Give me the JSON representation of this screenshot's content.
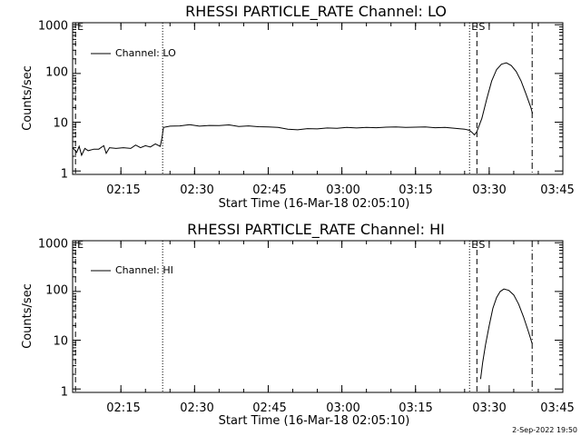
{
  "footer_date": "2-Sep-2022 19:50",
  "chart_data": [
    {
      "type": "line",
      "title": "RHESSI PARTICLE_RATE Channel: LO",
      "xlabel": "Start Time (16-Mar-18 02:05:10)",
      "ylabel": "Counts/sec",
      "y_scale": "log",
      "ylim": [
        0.85,
        1100
      ],
      "xlim": [
        "02:05:10",
        "03:45:00"
      ],
      "x_tick_labels": [
        "02:15",
        "02:30",
        "02:45",
        "03:00",
        "03:15",
        "03:30",
        "03:45"
      ],
      "y_tick_labels": [
        "1",
        "10",
        "100",
        "1000"
      ],
      "legend": {
        "position": "top-left",
        "label": "Channel: LO"
      },
      "grid": false,
      "markers": [
        {
          "time": "02:05:45",
          "style": "dashed",
          "label": "E"
        },
        {
          "time": "02:23:30",
          "style": "dotted",
          "label": ""
        },
        {
          "time": "03:26:00",
          "style": "dotted",
          "label": "E"
        },
        {
          "time": "03:27:30",
          "style": "dashed",
          "label": "S"
        },
        {
          "time": "03:38:45",
          "style": "dashdot",
          "label": ""
        }
      ],
      "series": [
        {
          "segments": [
            [
              [
                "02:05:10",
                3.0
              ],
              [
                "02:06:00",
                2.4
              ],
              [
                "02:06:30",
                3.2
              ],
              [
                "02:07:00",
                2.1
              ],
              [
                "02:07:40",
                2.9
              ],
              [
                "02:08:20",
                2.6
              ],
              [
                "02:09:30",
                2.8
              ],
              [
                "02:10:30",
                2.8
              ],
              [
                "02:11:30",
                3.3
              ],
              [
                "02:12:00",
                2.3
              ],
              [
                "02:12:40",
                3.0
              ],
              [
                "02:14:00",
                2.9
              ],
              [
                "02:15:30",
                3.0
              ],
              [
                "02:17:00",
                2.9
              ],
              [
                "02:18:00",
                3.4
              ],
              [
                "02:19:00",
                3.0
              ],
              [
                "02:20:00",
                3.3
              ],
              [
                "02:21:00",
                3.1
              ],
              [
                "02:22:00",
                3.6
              ],
              [
                "02:23:00",
                3.2
              ],
              [
                "02:23:20",
                4.6
              ],
              [
                "02:23:40",
                7.8
              ],
              [
                "02:25:00",
                8.3
              ],
              [
                "02:27:00",
                8.4
              ],
              [
                "02:29:00",
                8.9
              ],
              [
                "02:31:00",
                8.3
              ],
              [
                "02:33:00",
                8.6
              ],
              [
                "02:35:00",
                8.5
              ],
              [
                "02:37:00",
                8.8
              ],
              [
                "02:39:00",
                8.2
              ],
              [
                "02:41:00",
                8.4
              ],
              [
                "02:43:00",
                8.1
              ],
              [
                "02:45:00",
                8.0
              ],
              [
                "02:47:00",
                7.8
              ],
              [
                "02:49:00",
                7.2
              ],
              [
                "02:51:00",
                7.0
              ],
              [
                "02:53:00",
                7.4
              ],
              [
                "02:55:00",
                7.3
              ],
              [
                "02:57:00",
                7.6
              ],
              [
                "02:59:00",
                7.5
              ],
              [
                "03:01:00",
                7.8
              ],
              [
                "03:03:00",
                7.6
              ],
              [
                "03:05:00",
                7.8
              ],
              [
                "03:07:00",
                7.7
              ],
              [
                "03:09:00",
                7.9
              ],
              [
                "03:11:00",
                8.0
              ],
              [
                "03:13:00",
                7.8
              ],
              [
                "03:15:00",
                7.9
              ],
              [
                "03:17:00",
                8.0
              ],
              [
                "03:19:00",
                7.7
              ],
              [
                "03:21:00",
                7.8
              ],
              [
                "03:23:00",
                7.5
              ],
              [
                "03:25:00",
                7.2
              ],
              [
                "03:26:00",
                6.8
              ],
              [
                "03:26:30",
                6.2
              ],
              [
                "03:27:00",
                5.5
              ],
              [
                "03:27:30",
                6.4
              ],
              [
                "03:28:30",
                12
              ],
              [
                "03:29:30",
                30
              ],
              [
                "03:30:30",
                70
              ],
              [
                "03:31:30",
                120
              ],
              [
                "03:32:30",
                155
              ],
              [
                "03:33:30",
                165
              ],
              [
                "03:34:30",
                145
              ],
              [
                "03:35:30",
                110
              ],
              [
                "03:36:30",
                70
              ],
              [
                "03:37:30",
                38
              ],
              [
                "03:38:30",
                20
              ],
              [
                "03:38:50",
                15
              ]
            ]
          ]
        }
      ]
    },
    {
      "type": "line",
      "title": "RHESSI PARTICLE_RATE Channel: HI",
      "xlabel": "Start Time (16-Mar-18 02:05:10)",
      "ylabel": "Counts/sec",
      "y_scale": "log",
      "ylim": [
        0.85,
        1100
      ],
      "xlim": [
        "02:05:10",
        "03:45:00"
      ],
      "x_tick_labels": [
        "02:15",
        "02:30",
        "02:45",
        "03:00",
        "03:15",
        "03:30",
        "03:45"
      ],
      "y_tick_labels": [
        "1",
        "10",
        "100",
        "1000"
      ],
      "legend": {
        "position": "top-left",
        "label": "Channel: HI"
      },
      "grid": false,
      "markers": [
        {
          "time": "02:05:45",
          "style": "dashed",
          "label": "E"
        },
        {
          "time": "02:23:30",
          "style": "dotted",
          "label": ""
        },
        {
          "time": "03:26:00",
          "style": "dotted",
          "label": "E"
        },
        {
          "time": "03:27:30",
          "style": "dashed",
          "label": "S"
        },
        {
          "time": "03:38:45",
          "style": "dashdot",
          "label": ""
        }
      ],
      "series": [
        {
          "segments": [
            [
              [
                "03:28:15",
                1.6
              ],
              [
                "03:28:40",
                3.5
              ],
              [
                "03:29:15",
                8
              ],
              [
                "03:30:00",
                20
              ],
              [
                "03:30:45",
                45
              ],
              [
                "03:31:30",
                75
              ],
              [
                "03:32:15",
                100
              ],
              [
                "03:33:00",
                112
              ],
              [
                "03:34:00",
                105
              ],
              [
                "03:35:00",
                85
              ],
              [
                "03:36:00",
                55
              ],
              [
                "03:37:00",
                30
              ],
              [
                "03:38:00",
                15
              ],
              [
                "03:38:45",
                8.5
              ]
            ]
          ]
        }
      ]
    }
  ]
}
